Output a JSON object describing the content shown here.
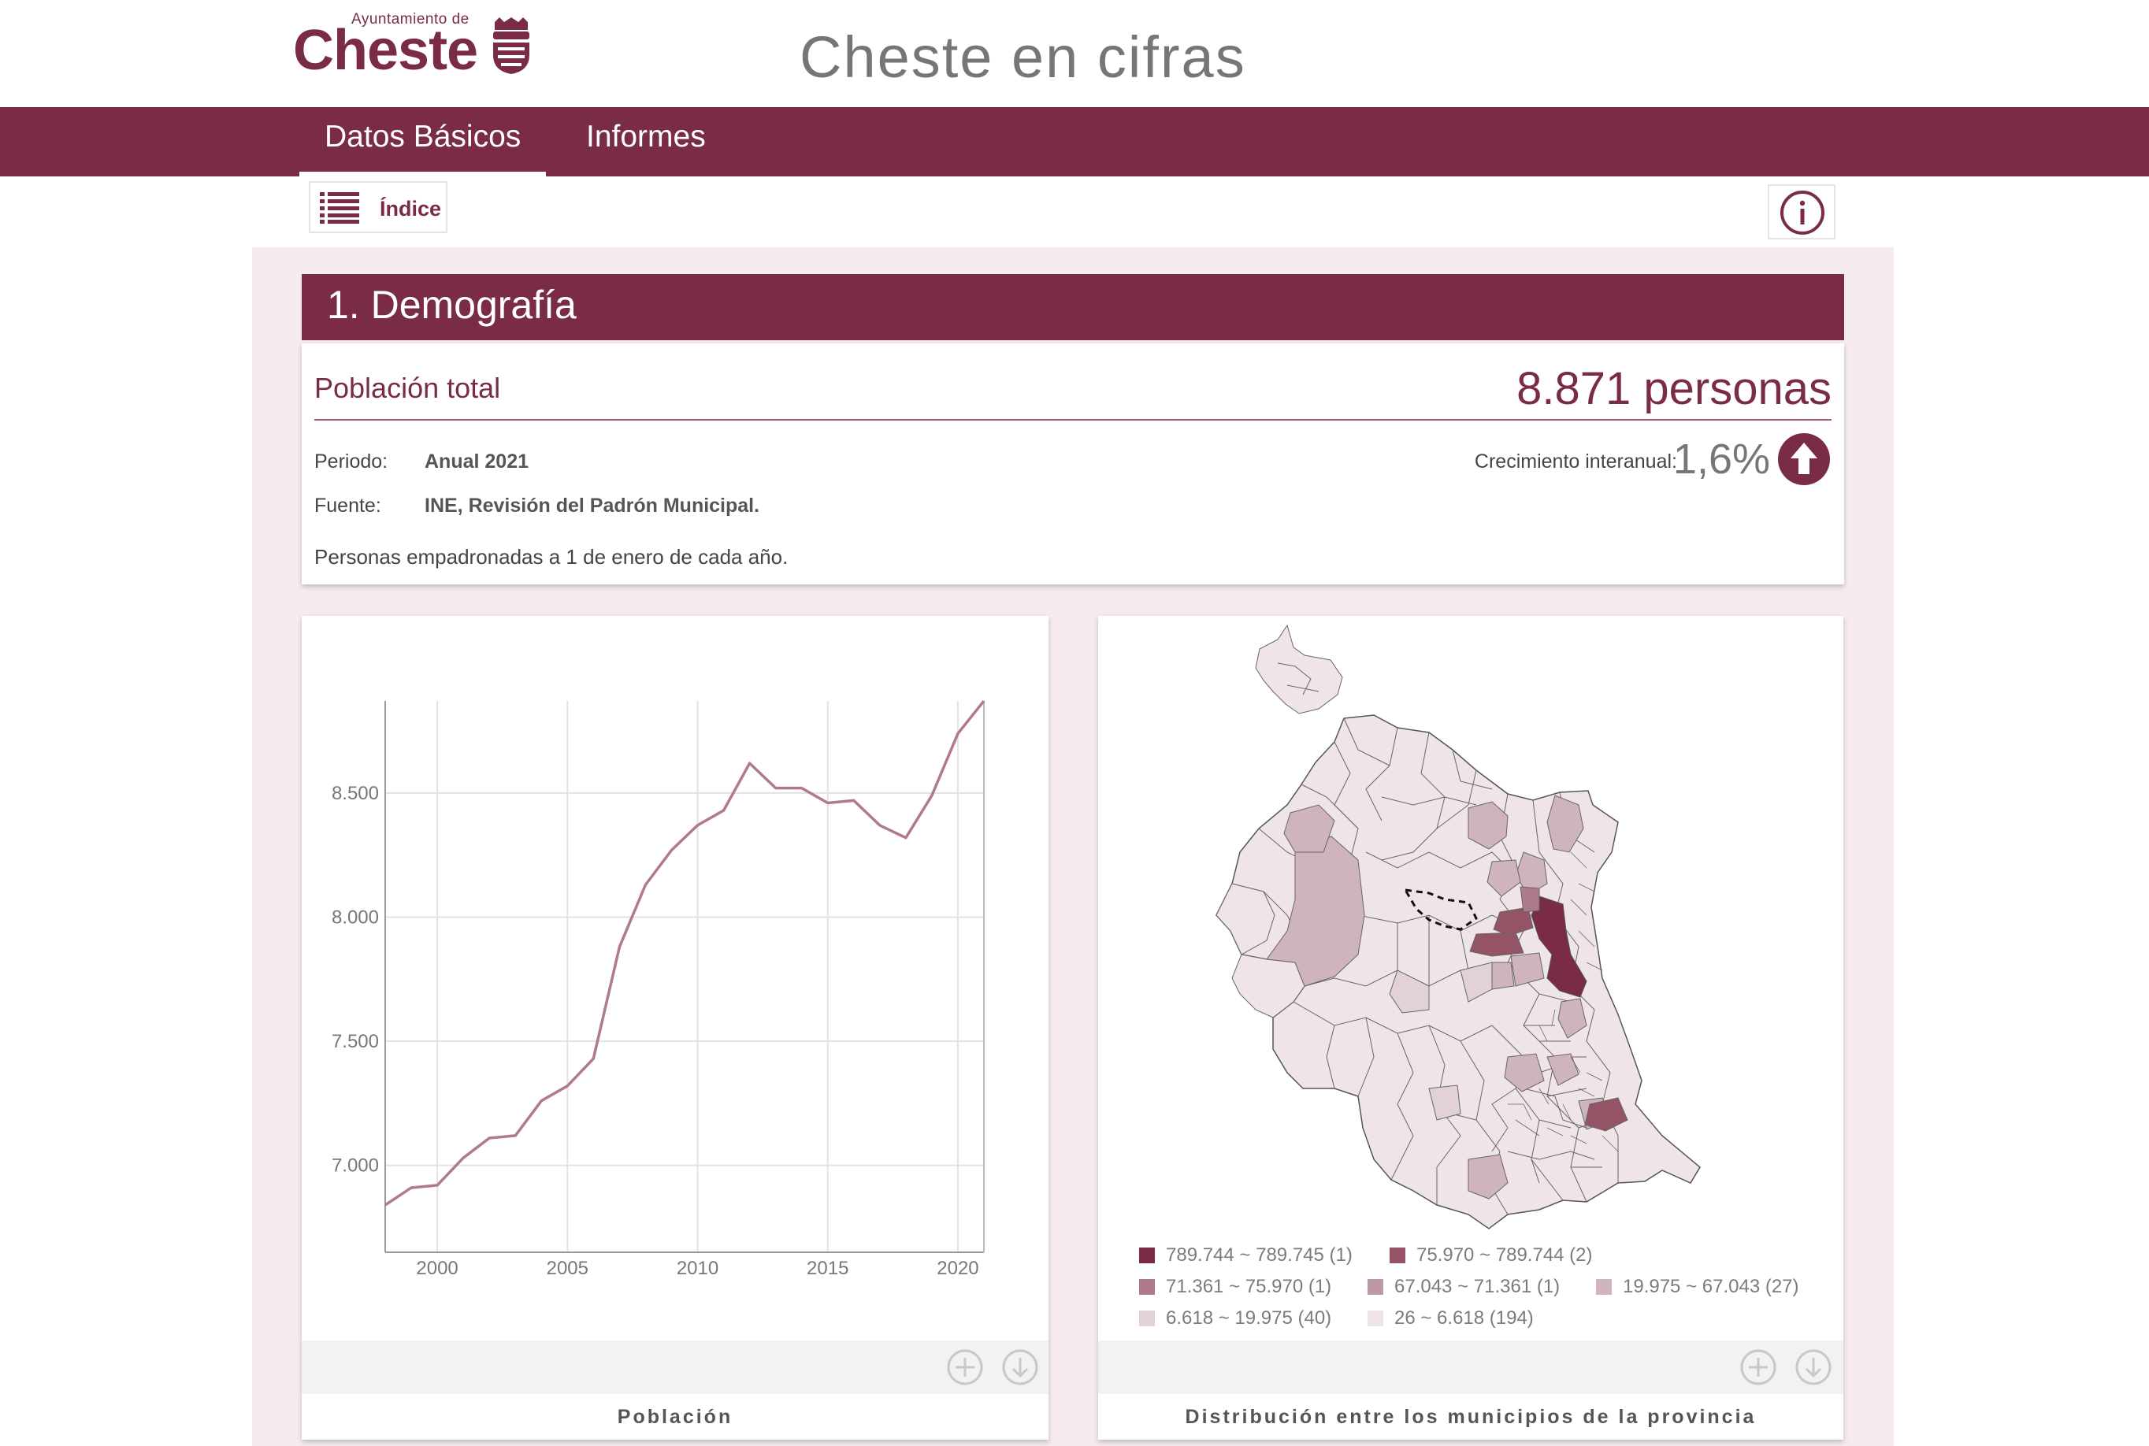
{
  "header": {
    "logo_small": "Ayuntamiento de",
    "logo_big": "Cheste",
    "title": "Cheste en cifras"
  },
  "nav": {
    "tabs": [
      {
        "label": "Datos Básicos",
        "active": true
      },
      {
        "label": "Informes",
        "active": false
      }
    ]
  },
  "toolbar": {
    "index_label": "Índice",
    "info_icon": "info-icon"
  },
  "section": {
    "title": "1. Demografía"
  },
  "population": {
    "label": "Población total",
    "value": "8.871 personas",
    "periodo_key": "Periodo:",
    "periodo_value": "Anual 2021",
    "fuente_key": "Fuente:",
    "fuente_value": "INE, Revisión del Padrón Municipal.",
    "growth_label": "Crecimiento interanual:",
    "growth_value": "1,6%",
    "growth_direction": "up",
    "note": "Personas empadronadas a 1 de enero de cada año."
  },
  "chart_card": {
    "caption": "Población"
  },
  "map_card": {
    "caption": "Distribución entre los municipios de la provincia",
    "legend": [
      {
        "label": "789.744 ~ 789.745 (1)",
        "color": "#7a2c44"
      },
      {
        "label": "75.970 ~ 789.744 (2)",
        "color": "#955466"
      },
      {
        "label": "71.361 ~ 75.970 (1)",
        "color": "#ad7b89"
      },
      {
        "label": "67.043 ~ 71.361 (1)",
        "color": "#bb9aa4"
      },
      {
        "label": "19.975 ~ 67.043 (27)",
        "color": "#cfb4bc"
      },
      {
        "label": "6.618 ~ 19.975 (40)",
        "color": "#e2d2d7"
      },
      {
        "label": "26 ~ 6.618 (194)",
        "color": "#efe4e8"
      }
    ]
  },
  "colors": {
    "brand": "#7a2c44",
    "line": "#b07a8a",
    "background": "#f6ecee"
  },
  "chart_data": {
    "type": "line",
    "title": "",
    "xlabel": "",
    "ylabel": "",
    "x": [
      1998,
      1999,
      2000,
      2001,
      2002,
      2003,
      2004,
      2005,
      2006,
      2007,
      2008,
      2009,
      2010,
      2011,
      2012,
      2013,
      2014,
      2015,
      2016,
      2017,
      2018,
      2019,
      2020,
      2021
    ],
    "series": [
      {
        "values": [
          6840,
          6910,
          6920,
          7030,
          7110,
          7120,
          7260,
          7320,
          7430,
          7880,
          8130,
          8270,
          8370,
          8430,
          8620,
          8520,
          8520,
          8460,
          8470,
          8370,
          8320,
          8490,
          8740,
          8871
        ]
      }
    ],
    "xticks": [
      2000,
      2005,
      2010,
      2015,
      2020
    ],
    "yticks": [
      7000,
      7500,
      8000,
      8500
    ],
    "ytick_labels": [
      "7.000",
      "7.500",
      "8.000",
      "8.500"
    ],
    "xlim": [
      1998,
      2021
    ],
    "ylim": [
      6650,
      8871
    ],
    "grid": true,
    "legend": false
  }
}
